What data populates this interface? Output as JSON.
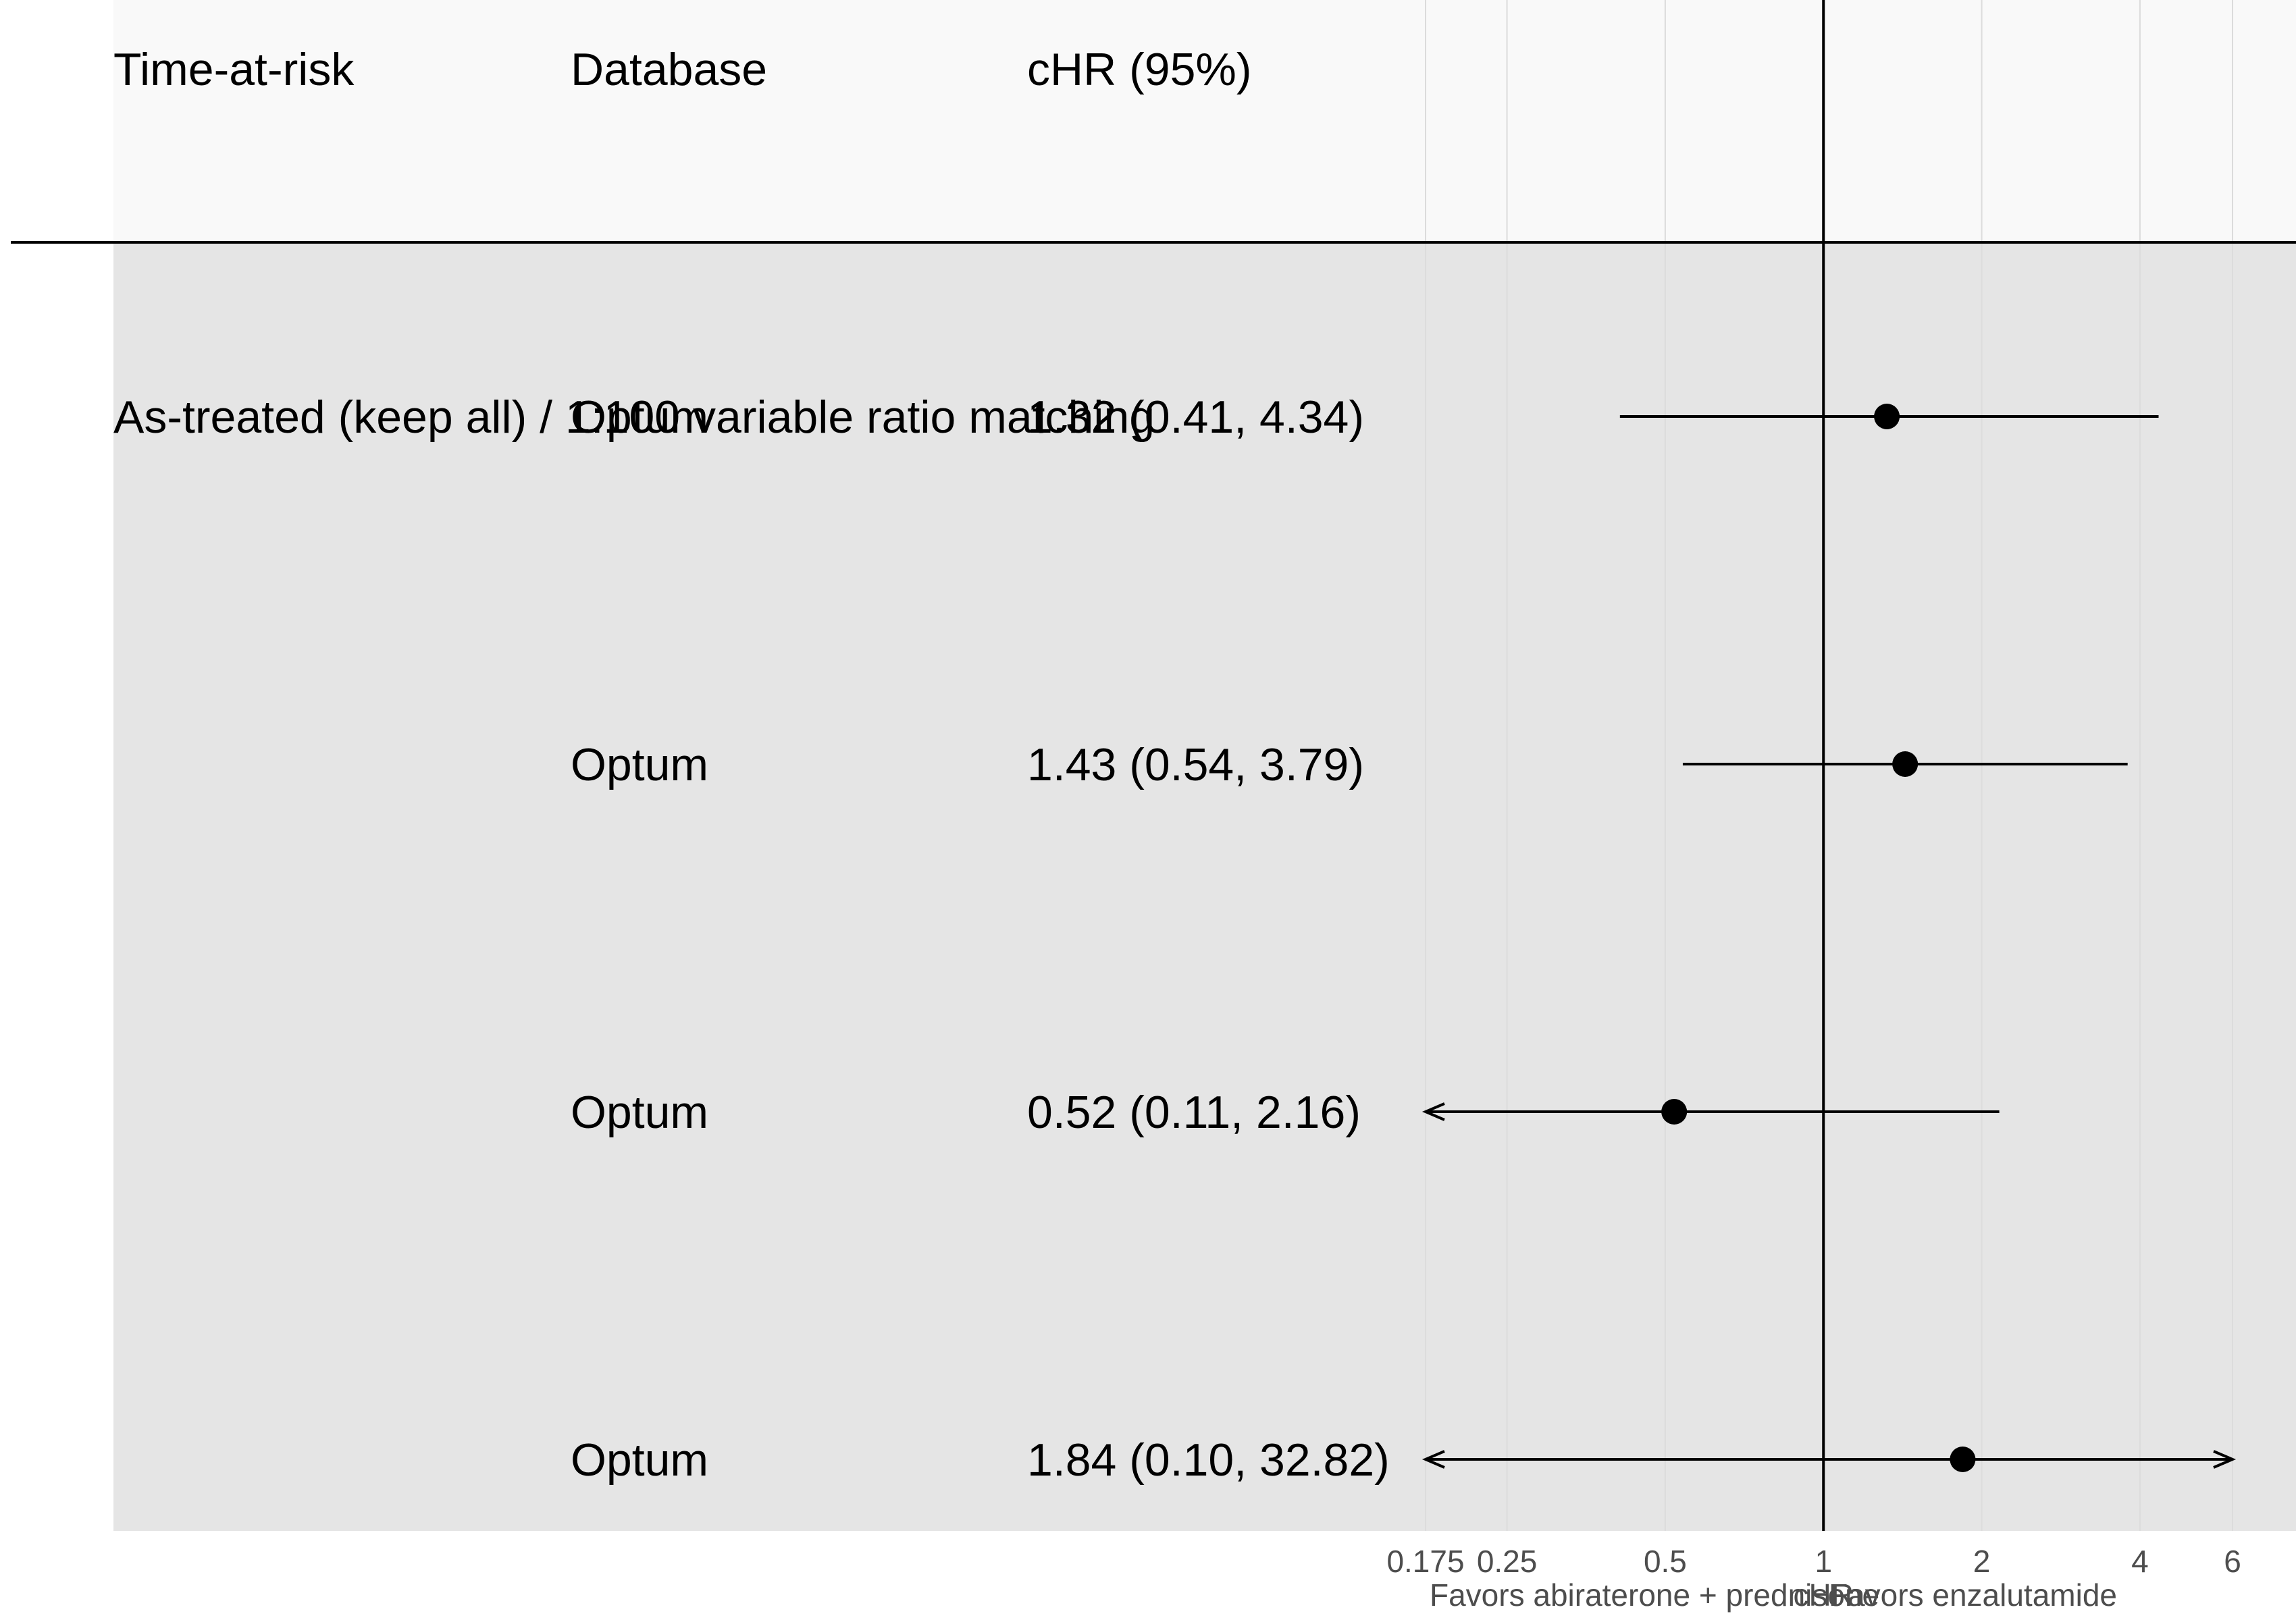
{
  "chart_data": {
    "type": "forest",
    "columns": {
      "time_at_risk": "Time-at-risk",
      "database": "Database",
      "estimate": "cHR (95%)"
    },
    "rows": [
      {
        "time_at_risk": "As-treated (keep all) / 1:100 variable ratio matching",
        "database": "Optum",
        "label": "1.32 (0.41, 4.34)",
        "hr": 1.32,
        "lower": 0.41,
        "upper": 4.34,
        "lower_arrow": false,
        "upper_arrow": false
      },
      {
        "time_at_risk": "",
        "database": "Optum",
        "label": "1.43 (0.54, 3.79)",
        "hr": 1.43,
        "lower": 0.54,
        "upper": 3.79,
        "lower_arrow": false,
        "upper_arrow": false
      },
      {
        "time_at_risk": "",
        "database": "Optum",
        "label": "0.52 (0.11, 2.16)",
        "hr": 0.52,
        "lower": 0.11,
        "upper": 2.16,
        "lower_arrow": true,
        "upper_arrow": false
      },
      {
        "time_at_risk": "",
        "database": "Optum",
        "label": "1.84 (0.10, 32.82)",
        "hr": 1.84,
        "lower": 0.1,
        "upper": 32.82,
        "lower_arrow": true,
        "upper_arrow": true
      }
    ],
    "x_axis": {
      "scale": "log",
      "range": [
        0.175,
        6
      ],
      "ticks": [
        0.175,
        0.25,
        0.5,
        1,
        2,
        4,
        6
      ],
      "tick_labels": [
        "0.175",
        "0.25",
        "0.5",
        "1",
        "2",
        "4",
        "6"
      ],
      "label": "cHR",
      "reference_line": 1
    },
    "annotations": {
      "favors_left": "Favors abiraterone + prednisone",
      "favors_right": "Favors enzalutamide"
    },
    "grid": true
  }
}
